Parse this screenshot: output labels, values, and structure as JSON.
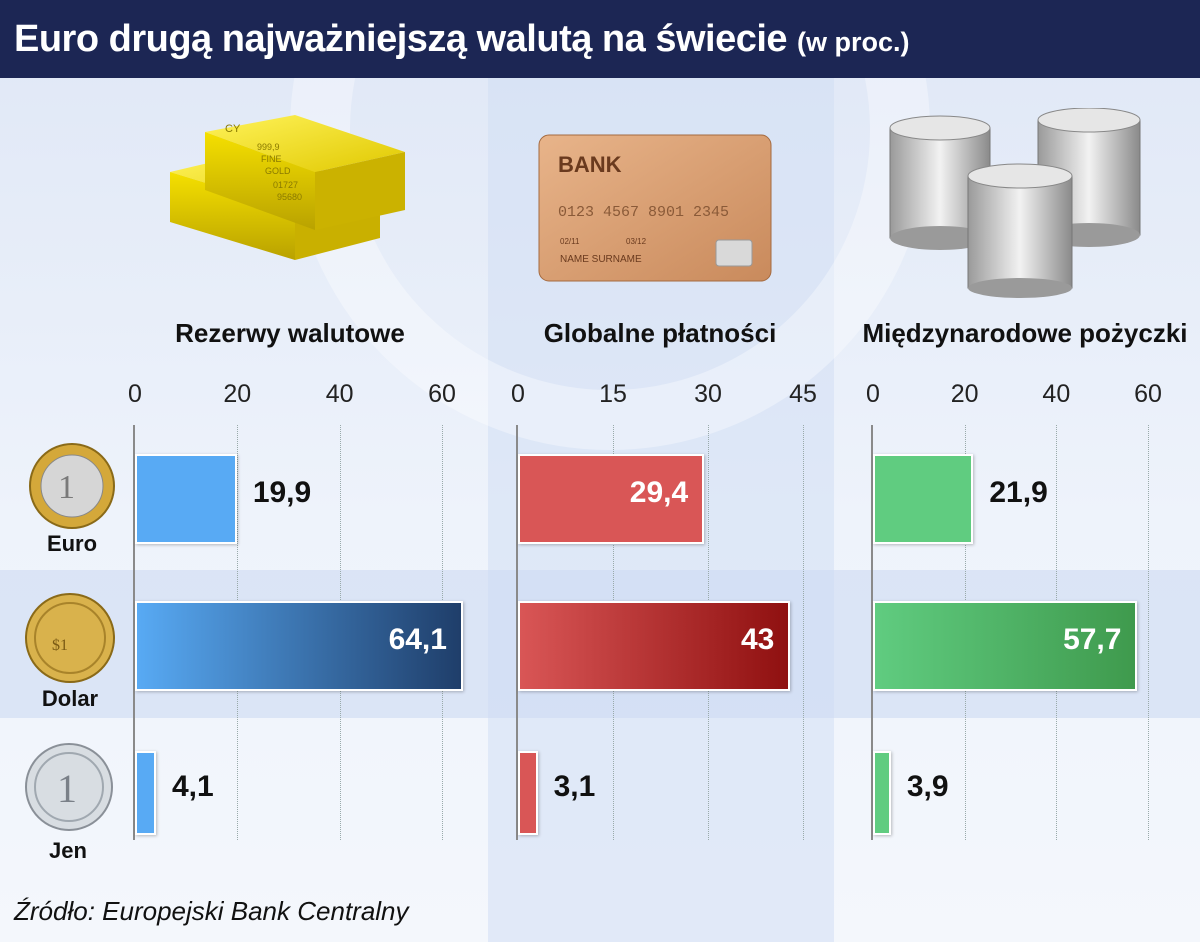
{
  "header": {
    "title": "Euro drugą najważniejszą walutą na świecie",
    "subtitle": "(w proc.)"
  },
  "source": "Źródło: Europejski Bank Centralny",
  "currencies": [
    "Euro",
    "Dolar",
    "Jen"
  ],
  "card": {
    "bank": "BANK",
    "number": "0123  4567  8901  2345",
    "from": "02/11",
    "to": "03/12",
    "holder": "NAME  SURNAME"
  },
  "gold_bar": {
    "mark": "CY",
    "line1": "999,9",
    "line2": "FINE",
    "line3": "GOLD",
    "line4": "01727",
    "line5": "95680"
  },
  "colors": {
    "header": "#1c2654",
    "reserves": [
      "#58aaf4",
      "#1f3e6a"
    ],
    "payments": [
      "#d95656",
      "#8f1010"
    ],
    "loans": [
      "#60cc80",
      "#3f9a4d"
    ]
  },
  "chart_data": [
    {
      "type": "bar",
      "orientation": "horizontal",
      "title": "Rezerwy walutowe",
      "categories": [
        "Euro",
        "Dolar",
        "Jen"
      ],
      "values": [
        19.9,
        64.1,
        4.1
      ],
      "value_labels": [
        "19,9",
        "64,1",
        "4,1"
      ],
      "xlim": [
        0,
        64.5
      ],
      "ticks": [
        0,
        20,
        40,
        60
      ]
    },
    {
      "type": "bar",
      "orientation": "horizontal",
      "title": "Globalne płatności",
      "categories": [
        "Euro",
        "Dolar",
        "Jen"
      ],
      "values": [
        29.4,
        43,
        3.1
      ],
      "value_labels": [
        "29,4",
        "43",
        "3,1"
      ],
      "xlim": [
        0,
        45
      ],
      "ticks": [
        0,
        15,
        30,
        45
      ]
    },
    {
      "type": "bar",
      "orientation": "horizontal",
      "title": "Międzynarodowe pożyczki",
      "categories": [
        "Euro",
        "Dolar",
        "Jen"
      ],
      "values": [
        21.9,
        57.7,
        3.9
      ],
      "value_labels": [
        "21,9",
        "57,7",
        "3,9"
      ],
      "xlim": [
        0,
        60
      ],
      "ticks": [
        0,
        20,
        40,
        60
      ]
    }
  ]
}
